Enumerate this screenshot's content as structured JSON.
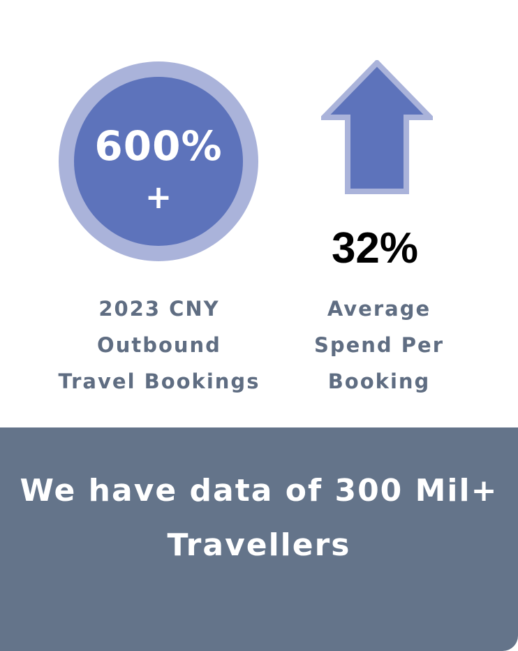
{
  "stat_left": {
    "value": "600%",
    "suffix": "+",
    "caption_lines": [
      "2023 CNY",
      "Outbound",
      "Travel Bookings"
    ]
  },
  "stat_right": {
    "icon": "arrow-up-icon",
    "value": "32%",
    "caption_lines": [
      "Average",
      "Spend Per",
      "Booking"
    ]
  },
  "banner": {
    "lines": [
      "We have data of 300 Mil+",
      "Travellers"
    ]
  },
  "colors": {
    "circle_outer": "#aab3da",
    "circle_inner": "#5d73bb",
    "arrow_fill": "#5d73bb",
    "arrow_outline": "#aab3da",
    "caption_text": "#5f6d82",
    "banner_bg": "#64748a"
  }
}
